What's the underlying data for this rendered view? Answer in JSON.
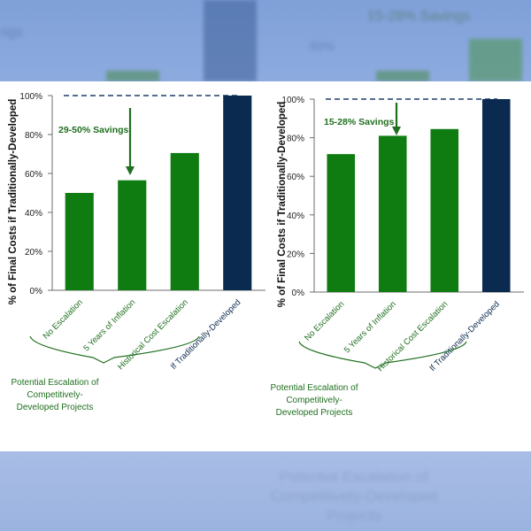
{
  "colors": {
    "green": "#0f7c12",
    "navy": "#0b2a4f",
    "dash": "#1f3d6b",
    "annotation": "#1f6f1f",
    "axis": "#6d6d6d"
  },
  "background_blur_text": {
    "top_left_fragment": "ngs",
    "top_center_value": "80%",
    "top_right_label": "15-28% Savings",
    "bottom_note": "Potential Escalation of Competitively-Developed Projects"
  },
  "chart_data": [
    {
      "type": "bar",
      "ylabel": "% of Final Costs if Traditionally-Developed",
      "ylim": [
        0,
        100
      ],
      "ytick_labels": [
        "0%",
        "20%",
        "40%",
        "60%",
        "80%",
        "100%"
      ],
      "categories": [
        "No Escalation",
        "5 Years of Inflation",
        "Historical Cost Escalation",
        "If Traditionally-Developed"
      ],
      "values": [
        50,
        56.5,
        70.5,
        100
      ],
      "reference_line": 100,
      "annotation": {
        "text": "29-50% Savings",
        "target_category": "5 Years of Inflation"
      },
      "bracket_label": [
        "Potential Escalation of",
        "Competitively-",
        "Developed Projects"
      ]
    },
    {
      "type": "bar",
      "ylabel": "% of Final Costs if Traditionally-Developed",
      "ylim": [
        0,
        100
      ],
      "ytick_labels": [
        "0%",
        "20%",
        "40%",
        "60%",
        "80%",
        "100%"
      ],
      "categories": [
        "No Escalation",
        "5 Years of Inflation",
        "Historical Cost Escalation",
        "If Traditionally-Developed"
      ],
      "values": [
        71.5,
        81,
        84.5,
        100
      ],
      "reference_line": 100,
      "annotation": {
        "text": "15-28% Savings",
        "target_category": "5 Years of Inflation"
      },
      "bracket_label": [
        "Potential Escalation of",
        "Competitively-",
        "Developed Projects"
      ]
    }
  ]
}
